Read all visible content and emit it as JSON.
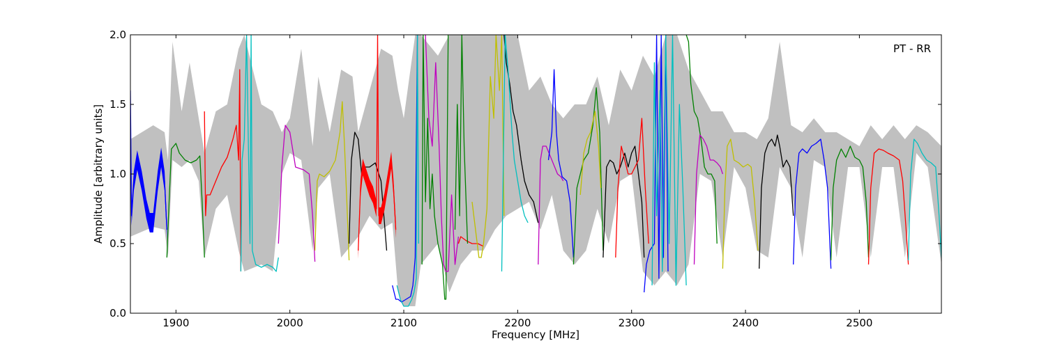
{
  "chart_data": {
    "type": "line",
    "annotation": "PT - RR",
    "xlabel": "Frequency [MHz]",
    "ylabel": "Amplitude [arbitrary units]",
    "xlim": [
      1860,
      2572
    ],
    "ylim": [
      0,
      2
    ],
    "x_ticks": [
      1900,
      2000,
      2100,
      2200,
      2300,
      2400,
      2500
    ],
    "x_tick_labels": [
      "1900",
      "2000",
      "2100",
      "2200",
      "2300",
      "2400",
      "2500"
    ],
    "y_ticks": [
      0,
      0.5,
      1,
      1.5,
      2
    ],
    "y_tick_labels": [
      "0.0",
      "0.5",
      "1.0",
      "1.5",
      "2.0"
    ],
    "grid": false,
    "legend": "none",
    "envelope": {
      "color": "#c0c0c0",
      "x": [
        1860,
        1880,
        1890,
        1893,
        1897,
        1905,
        1912,
        1920,
        1925,
        1935,
        1945,
        1955,
        1960,
        1975,
        1985,
        1993,
        2000,
        2010,
        2020,
        2025,
        2035,
        2045,
        2055,
        2060,
        2070,
        2080,
        2090,
        2095,
        2100,
        2110,
        2115,
        2130,
        2140,
        2150,
        2160,
        2170,
        2180,
        2190,
        2200,
        2210,
        2220,
        2230,
        2240,
        2250,
        2260,
        2270,
        2280,
        2290,
        2300,
        2310,
        2320,
        2330,
        2340,
        2350,
        2360,
        2370,
        2380,
        2390,
        2400,
        2410,
        2420,
        2430,
        2440,
        2450,
        2460,
        2470,
        2480,
        2490,
        2500,
        2510,
        2520,
        2530,
        2540,
        2550,
        2560,
        2572
      ],
      "high": [
        1.25,
        1.35,
        1.3,
        1.1,
        1.95,
        1.45,
        1.8,
        1.4,
        1.15,
        1.45,
        1.5,
        1.9,
        2.0,
        1.5,
        1.45,
        1.3,
        1.4,
        1.9,
        1.2,
        1.7,
        1.3,
        1.75,
        1.7,
        1.3,
        1.6,
        1.9,
        1.85,
        1.6,
        1.4,
        2.0,
        2.0,
        1.85,
        2.0,
        2.0,
        2.0,
        2.0,
        2.0,
        2.0,
        2.0,
        1.6,
        1.7,
        1.5,
        1.4,
        1.5,
        1.5,
        1.7,
        1.35,
        1.75,
        1.6,
        1.85,
        1.7,
        2.0,
        2.0,
        1.75,
        1.6,
        1.45,
        1.45,
        1.3,
        1.3,
        1.25,
        1.4,
        1.95,
        1.35,
        1.3,
        1.4,
        1.3,
        1.3,
        1.25,
        1.2,
        1.35,
        1.25,
        1.35,
        1.25,
        1.35,
        1.3,
        1.2
      ],
      "low": [
        0.55,
        0.62,
        0.6,
        0.4,
        1.1,
        1.05,
        1.1,
        0.95,
        0.4,
        0.75,
        0.85,
        0.45,
        0.3,
        0.35,
        0.3,
        1.0,
        1.15,
        1.1,
        0.45,
        0.9,
        1.0,
        0.4,
        0.5,
        0.55,
        0.7,
        0.6,
        0.65,
        0.15,
        0.05,
        0.05,
        0.35,
        0.5,
        0.15,
        0.35,
        0.45,
        0.45,
        0.6,
        0.7,
        0.75,
        0.8,
        0.6,
        0.85,
        0.45,
        0.35,
        0.45,
        0.75,
        0.5,
        0.95,
        1.0,
        0.3,
        0.2,
        0.3,
        0.2,
        0.35,
        1.0,
        0.95,
        0.4,
        1.05,
        0.9,
        0.45,
        0.4,
        1.05,
        0.9,
        0.4,
        1.1,
        1.05,
        0.4,
        1.05,
        1.05,
        0.4,
        1.05,
        1.05,
        0.4,
        1.15,
        1.05,
        0.35
      ]
    },
    "series": [
      {
        "color": "#0000ff",
        "x": [
          1860,
          1861,
          1863,
          1866,
          1870,
          1874,
          1877,
          1880,
          1884,
          1887,
          1890,
          1892
        ],
        "y": [
          1.6,
          0.7,
          0.95,
          1.1,
          0.95,
          0.75,
          0.65,
          0.65,
          0.95,
          1.12,
          0.95,
          0.6
        ],
        "band": 0.07
      },
      {
        "color": "#008000",
        "x": [
          1892,
          1894,
          1896,
          1900,
          1903,
          1908,
          1913,
          1918,
          1921,
          1923,
          1925
        ],
        "y": [
          0.4,
          0.8,
          1.18,
          1.22,
          1.15,
          1.1,
          1.08,
          1.1,
          1.13,
          0.8,
          0.4
        ]
      },
      {
        "color": "#ff0000",
        "x": [
          1925,
          1926,
          1927,
          1930,
          1935,
          1940,
          1945,
          1950,
          1953,
          1955,
          1956,
          1957
        ],
        "y": [
          1.45,
          0.7,
          0.85,
          0.85,
          0.95,
          1.05,
          1.12,
          1.25,
          1.35,
          1.1,
          1.75,
          0.3
        ]
      },
      {
        "color": "#00bfbf",
        "x": [
          1957,
          1958,
          1960,
          1962,
          1965,
          1966,
          1967,
          1970,
          1975,
          1980,
          1985,
          1988,
          1990
        ],
        "y": [
          0.3,
          1.1,
          1.25,
          2.0,
          0.5,
          2.0,
          0.45,
          0.35,
          0.33,
          0.35,
          0.33,
          0.3,
          0.4
        ]
      },
      {
        "color": "#bf00bf",
        "x": [
          1990,
          1993,
          1996,
          2000,
          2005,
          2012,
          2017,
          2020,
          2022
        ],
        "y": [
          0.5,
          1.05,
          1.35,
          1.3,
          1.05,
          1.03,
          1.0,
          0.7,
          0.37
        ]
      },
      {
        "color": "#bfbf00",
        "x": [
          2022,
          2024,
          2026,
          2030,
          2035,
          2040,
          2044,
          2046,
          2048,
          2050,
          2052
        ],
        "y": [
          0.45,
          0.95,
          1.0,
          0.98,
          1.02,
          1.1,
          1.3,
          1.52,
          1.2,
          0.8,
          0.38
        ]
      },
      {
        "color": "#000000",
        "x": [
          2052,
          2054,
          2057,
          2060,
          2063,
          2066,
          2070,
          2075,
          2080,
          2083,
          2085
        ],
        "y": [
          0.5,
          1.1,
          1.3,
          1.25,
          1.0,
          1.05,
          1.05,
          1.08,
          0.95,
          0.65,
          0.45
        ]
      },
      {
        "color": "#ff0000",
        "x": [
          2060,
          2062,
          2064,
          2066,
          2070,
          2073,
          2076,
          2077,
          2078,
          2080,
          2083,
          2086,
          2089,
          2091,
          2093
        ],
        "y": [
          0.45,
          0.9,
          1.05,
          1.0,
          0.9,
          0.85,
          0.75,
          2.0,
          0.7,
          0.7,
          0.8,
          0.95,
          1.1,
          0.9,
          0.6
        ],
        "band": 0.06
      },
      {
        "color": "#0000ff",
        "x": [
          2090,
          2093,
          2095,
          2098,
          2102,
          2106,
          2108,
          2110,
          2112
        ],
        "y": [
          0.2,
          0.1,
          0.1,
          0.08,
          0.1,
          0.12,
          0.2,
          0.4,
          2.0
        ]
      },
      {
        "color": "#00bfbf",
        "x": [
          2094,
          2097,
          2100,
          2104,
          2107,
          2109,
          2111,
          2112,
          2113
        ],
        "y": [
          0.2,
          0.1,
          0.05,
          0.05,
          0.1,
          0.15,
          0.25,
          2.0,
          0.5
        ]
      },
      {
        "color": "#008000",
        "x": [
          2116,
          2117,
          2119,
          2121,
          2123,
          2125,
          2127,
          2130,
          2134,
          2136,
          2137,
          2139
        ],
        "y": [
          0.35,
          2.0,
          0.8,
          1.4,
          0.75,
          1.0,
          0.7,
          0.5,
          0.35,
          0.1,
          0.1,
          2.0
        ]
      },
      {
        "color": "#bf00bf",
        "x": [
          2119,
          2122,
          2125,
          2128,
          2131,
          2133,
          2135,
          2137,
          2139,
          2142,
          2145,
          2148
        ],
        "y": [
          2.0,
          1.4,
          1.2,
          1.8,
          1.2,
          0.7,
          0.35,
          0.3,
          0.3,
          0.85,
          0.35,
          0.55
        ]
      },
      {
        "color": "#ff0000",
        "x": [
          2148,
          2150,
          2155,
          2160,
          2165,
          2170
        ],
        "y": [
          0.5,
          0.55,
          0.52,
          0.5,
          0.5,
          0.48
        ]
      },
      {
        "color": "#008000",
        "x": [
          2145,
          2147,
          2149,
          2151,
          2153,
          2156
        ],
        "y": [
          0.6,
          1.5,
          0.7,
          2.0,
          1.2,
          0.5
        ]
      },
      {
        "color": "#bfbf00",
        "x": [
          2160,
          2163,
          2166,
          2168,
          2170,
          2173,
          2176,
          2179,
          2181,
          2184,
          2186,
          2188
        ],
        "y": [
          0.8,
          0.6,
          0.4,
          0.4,
          0.5,
          0.75,
          1.7,
          1.4,
          2.0,
          1.6,
          2.0,
          0.7
        ]
      },
      {
        "color": "#000000",
        "x": [
          2188,
          2190,
          2193,
          2196,
          2199,
          2203,
          2206,
          2210,
          2214,
          2218
        ],
        "y": [
          2.0,
          1.8,
          1.65,
          1.45,
          1.35,
          1.1,
          0.95,
          0.85,
          0.8,
          0.65
        ]
      },
      {
        "color": "#00bfbf",
        "x": [
          2186,
          2189,
          2192,
          2195,
          2197,
          2200,
          2203,
          2206,
          2209
        ],
        "y": [
          0.3,
          2.0,
          1.7,
          1.3,
          1.1,
          0.95,
          0.8,
          0.7,
          0.65
        ]
      },
      {
        "color": "#bf00bf",
        "x": [
          2218,
          2220,
          2222,
          2225,
          2230,
          2235,
          2238,
          2240
        ],
        "y": [
          0.35,
          1.1,
          1.2,
          1.2,
          1.1,
          1.0,
          0.98,
          0.95
        ]
      },
      {
        "color": "#0000ff",
        "x": [
          2227,
          2230,
          2232,
          2234,
          2236,
          2239,
          2243,
          2246,
          2249
        ],
        "y": [
          1.1,
          1.3,
          1.75,
          1.3,
          1.1,
          0.98,
          0.95,
          0.8,
          0.4
        ]
      },
      {
        "color": "#008000",
        "x": [
          2249,
          2252,
          2255,
          2258,
          2262,
          2266,
          2269,
          2272,
          2275
        ],
        "y": [
          0.35,
          0.9,
          1.0,
          1.1,
          1.15,
          1.35,
          1.62,
          1.3,
          0.45
        ]
      },
      {
        "color": "#bfbf00",
        "x": [
          2255,
          2258,
          2261,
          2264,
          2268,
          2271,
          2273
        ],
        "y": [
          0.85,
          1.15,
          1.25,
          1.3,
          1.45,
          1.2,
          0.9
        ]
      },
      {
        "color": "#000000",
        "x": [
          2275,
          2278,
          2281,
          2284,
          2287,
          2290,
          2294,
          2297,
          2300,
          2303,
          2306,
          2309,
          2311
        ],
        "y": [
          0.4,
          1.05,
          1.1,
          1.08,
          1.0,
          1.05,
          1.15,
          1.05,
          1.15,
          1.2,
          1.0,
          0.8,
          0.4
        ]
      },
      {
        "color": "#ff0000",
        "x": [
          2286,
          2288,
          2291,
          2294,
          2297,
          2300,
          2303,
          2306,
          2309,
          2312,
          2315
        ],
        "y": [
          0.4,
          0.9,
          1.2,
          1.1,
          1.0,
          1.0,
          1.05,
          1.1,
          1.4,
          0.9,
          0.5
        ]
      },
      {
        "color": "#0000ff",
        "x": [
          2311,
          2313,
          2316,
          2320,
          2322,
          2324,
          2326,
          2328,
          2330,
          2332
        ],
        "y": [
          0.15,
          0.35,
          0.45,
          0.5,
          2.0,
          0.25,
          2.0,
          0.4,
          2.0,
          0.3
        ]
      },
      {
        "color": "#00bfbf",
        "x": [
          2318,
          2320,
          2322,
          2325,
          2327,
          2330,
          2333,
          2336,
          2339,
          2342,
          2345,
          2348
        ],
        "y": [
          0.2,
          1.8,
          0.7,
          1.6,
          0.3,
          2.0,
          0.5,
          2.0,
          0.2,
          1.5,
          0.9,
          0.2
        ]
      },
      {
        "color": "#008000",
        "x": [
          2348,
          2350,
          2352,
          2355,
          2358,
          2361,
          2364,
          2367,
          2370,
          2373,
          2375
        ],
        "y": [
          2.0,
          1.95,
          1.65,
          1.45,
          1.4,
          1.25,
          1.05,
          1.0,
          1.0,
          0.95,
          0.5
        ]
      },
      {
        "color": "#bf00bf",
        "x": [
          2355,
          2357,
          2360,
          2363,
          2366,
          2369,
          2372,
          2375,
          2378,
          2380
        ],
        "y": [
          0.35,
          1.0,
          1.28,
          1.25,
          1.2,
          1.1,
          1.1,
          1.08,
          1.05,
          1.0
        ]
      },
      {
        "color": "#bfbf00",
        "x": [
          2380,
          2382,
          2384,
          2387,
          2390,
          2394,
          2398,
          2402,
          2405,
          2408,
          2411
        ],
        "y": [
          0.32,
          0.9,
          1.2,
          1.25,
          1.1,
          1.08,
          1.05,
          1.07,
          1.05,
          0.8,
          0.45
        ]
      },
      {
        "color": "#000000",
        "x": [
          2412,
          2414,
          2417,
          2420,
          2423,
          2426,
          2428,
          2430,
          2433,
          2436,
          2439,
          2442
        ],
        "y": [
          0.32,
          0.9,
          1.15,
          1.22,
          1.25,
          1.2,
          1.28,
          1.2,
          1.05,
          1.1,
          1.05,
          0.7
        ]
      },
      {
        "color": "#0000ff",
        "x": [
          2442,
          2444,
          2447,
          2450,
          2454,
          2458,
          2462,
          2466,
          2469,
          2472,
          2475
        ],
        "y": [
          0.35,
          0.9,
          1.15,
          1.18,
          1.15,
          1.2,
          1.22,
          1.25,
          1.1,
          0.9,
          0.32
        ]
      },
      {
        "color": "#008000",
        "x": [
          2475,
          2477,
          2480,
          2484,
          2488,
          2492,
          2496,
          2500,
          2503,
          2506,
          2508
        ],
        "y": [
          0.38,
          0.9,
          1.1,
          1.18,
          1.12,
          1.2,
          1.12,
          1.1,
          1.05,
          0.8,
          0.4
        ]
      },
      {
        "color": "#ff0000",
        "x": [
          2508,
          2510,
          2513,
          2517,
          2521,
          2525,
          2530,
          2535,
          2538,
          2541,
          2543
        ],
        "y": [
          0.35,
          0.9,
          1.15,
          1.18,
          1.17,
          1.15,
          1.13,
          1.1,
          0.95,
          0.6,
          0.35
        ]
      },
      {
        "color": "#00bfbf",
        "x": [
          2543,
          2545,
          2548,
          2551,
          2555,
          2559,
          2563,
          2567,
          2570,
          2572
        ],
        "y": [
          0.38,
          1.0,
          1.25,
          1.22,
          1.15,
          1.1,
          1.08,
          1.05,
          0.7,
          0.4
        ]
      }
    ]
  }
}
